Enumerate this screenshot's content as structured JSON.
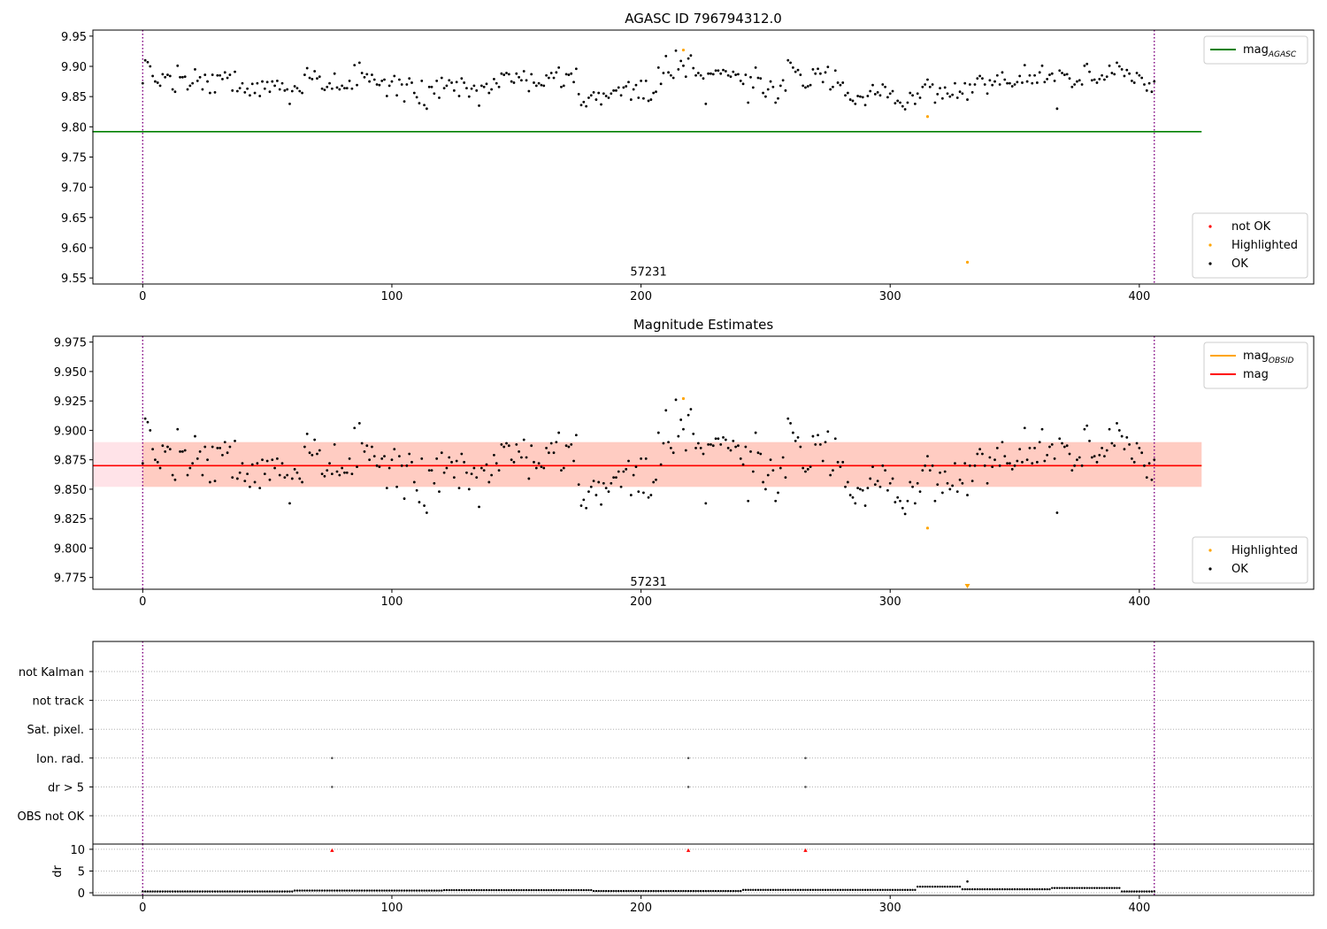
{
  "chart_data": [
    {
      "id": "top",
      "type": "scatter",
      "title": "AGASC ID 796794312.0",
      "xlim": [
        -20,
        470
      ],
      "ylim": [
        9.54,
        9.96
      ],
      "xticks": [
        0,
        100,
        200,
        300,
        400
      ],
      "yticks": [
        9.55,
        9.6,
        9.65,
        9.7,
        9.75,
        9.8,
        9.85,
        9.9,
        9.95
      ],
      "ytick_decimals": 2,
      "vlines": [
        0,
        406
      ],
      "annotation": {
        "text": "57231",
        "x": 203,
        "y": 9.56
      },
      "reference_line": {
        "name": "magAGASC",
        "label_main": "mag",
        "label_sub": "AGASC",
        "value": 9.792,
        "x_range": [
          0,
          425
        ],
        "color": "#008000"
      },
      "base_series": {
        "name": "OK",
        "color": "#000000",
        "count": 407,
        "first_x": 0,
        "values": [
          9.872,
          9.91,
          9.907,
          9.9,
          9.884,
          9.875,
          9.873,
          9.868,
          9.887,
          9.882,
          9.886,
          9.884,
          9.862,
          9.858,
          9.901,
          9.882,
          9.882,
          9.883,
          9.862,
          9.868,
          9.872,
          9.895,
          9.876,
          9.882,
          9.862,
          9.886,
          9.875,
          9.856,
          9.886,
          9.857,
          9.885,
          9.885,
          9.879,
          9.89,
          9.881,
          9.886,
          9.86,
          9.891,
          9.859,
          9.864,
          9.872,
          9.857,
          9.863,
          9.852,
          9.871,
          9.856,
          9.872,
          9.851,
          9.875,
          9.863,
          9.874,
          9.858,
          9.875,
          9.868,
          9.876,
          9.862,
          9.872,
          9.86,
          9.862,
          9.838,
          9.859,
          9.867,
          9.864,
          9.859,
          9.856,
          9.886,
          9.897,
          9.881,
          9.879,
          9.892,
          9.88,
          9.883,
          9.863,
          9.861,
          9.866,
          9.872,
          9.863,
          9.888,
          9.865,
          9.862,
          9.868,
          9.864,
          9.864,
          9.876,
          9.863,
          9.902,
          9.869,
          9.906,
          9.889,
          9.882,
          9.887,
          9.875,
          9.886,
          9.878,
          9.87,
          9.869,
          9.876,
          9.878,
          9.851,
          9.868,
          9.875,
          9.884,
          9.852,
          9.878,
          9.87,
          9.842,
          9.87,
          9.88,
          9.873,
          9.856,
          9.849,
          9.839,
          9.876,
          9.836,
          9.83,
          9.866,
          9.866,
          9.855,
          9.876,
          9.848,
          9.881,
          9.864,
          9.868,
          9.877,
          9.873,
          9.86,
          9.874,
          9.851,
          9.88,
          9.873,
          9.864,
          9.85,
          9.863,
          9.868,
          9.86,
          9.835,
          9.868,
          9.866,
          9.871,
          9.856,
          9.862,
          9.879,
          9.872,
          9.866,
          9.888,
          9.886,
          9.889,
          9.887,
          9.875,
          9.873,
          9.888,
          9.882,
          9.877,
          9.892,
          9.877,
          9.859,
          9.887,
          9.873,
          9.868,
          9.872,
          9.869,
          9.868,
          9.885,
          9.881,
          9.889,
          9.881,
          9.89,
          9.898,
          9.866,
          9.868,
          9.887,
          9.886,
          9.888,
          9.874,
          9.896,
          9.854,
          9.836,
          9.841,
          9.834,
          9.848,
          9.852,
          9.857,
          9.845,
          9.856,
          9.837,
          9.855,
          9.851,
          9.848,
          9.855,
          9.86,
          9.86,
          9.865,
          9.852,
          9.865,
          9.867,
          9.874,
          9.845,
          9.862,
          9.869,
          9.848,
          9.876,
          9.847,
          9.876,
          9.843,
          9.845,
          9.856,
          9.858,
          9.898,
          9.871,
          9.889,
          9.917,
          9.89,
          9.885,
          9.881,
          9.926,
          9.895,
          9.909,
          9.901,
          9.883,
          9.913,
          9.918,
          9.897,
          9.885,
          9.889,
          9.885,
          9.88,
          9.838,
          9.888,
          9.888,
          9.887,
          9.893,
          9.893,
          9.888,
          9.894,
          9.892,
          9.885,
          9.883,
          9.891,
          9.886,
          9.887,
          9.876,
          9.871,
          9.886,
          9.84,
          9.882,
          9.865,
          9.898,
          9.881,
          9.88,
          9.856,
          9.85,
          9.862,
          9.875,
          9.866,
          9.84,
          9.847,
          9.868,
          9.877,
          9.86,
          9.91,
          9.906,
          9.898,
          9.891,
          9.894,
          9.886,
          9.868,
          9.865,
          9.867,
          9.869,
          9.895,
          9.888,
          9.896,
          9.888,
          9.874,
          9.89,
          9.899,
          9.862,
          9.866,
          9.893,
          9.873,
          9.869,
          9.873,
          9.852,
          9.856,
          9.845,
          9.843,
          9.838,
          9.851,
          9.85,
          9.849,
          9.836,
          9.851,
          9.859,
          9.869,
          9.854,
          9.857,
          9.852,
          9.87,
          9.866,
          9.849,
          9.855,
          9.859,
          9.839,
          9.843,
          9.84,
          9.834,
          9.829,
          9.84,
          9.856,
          9.852,
          9.838,
          9.855,
          9.848,
          9.866,
          9.87,
          9.878,
          9.866,
          9.87,
          9.84,
          9.854,
          9.864,
          9.847,
          9.865,
          9.855,
          9.85,
          9.853,
          9.872,
          9.848,
          9.858,
          9.855,
          9.872,
          9.845,
          9.87,
          9.857,
          9.87,
          9.88,
          9.884,
          9.88,
          9.87,
          9.855,
          9.877,
          9.869,
          9.875,
          9.885,
          9.87,
          9.89,
          9.878,
          9.872,
          9.872,
          9.867,
          9.87,
          9.874,
          9.884,
          9.873,
          9.902,
          9.875,
          9.885,
          9.872,
          9.885,
          9.873,
          9.89,
          9.901,
          9.874,
          9.879,
          9.886,
          9.888,
          9.876,
          9.83,
          9.893,
          9.889,
          9.886,
          9.887,
          9.88,
          9.866,
          9.87,
          9.875,
          9.877,
          9.87,
          9.901,
          9.904,
          9.891,
          9.877,
          9.878,
          9.873,
          9.879,
          9.885,
          9.878,
          9.883,
          9.901,
          9.889,
          9.887,
          9.906,
          9.9,
          9.895,
          9.884,
          9.894,
          9.888,
          9.876,
          9.873,
          9.889,
          9.885,
          9.881,
          9.87,
          9.86,
          9.872,
          9.858,
          9.875
        ]
      },
      "series": [
        {
          "name": "Highlighted",
          "color": "#ffa500",
          "points": [
            [
              217,
              9.927
            ],
            [
              315,
              9.817
            ],
            [
              331,
              9.576
            ]
          ]
        },
        {
          "name": "not OK",
          "color": "#ff0000",
          "points": []
        }
      ],
      "legends": [
        {
          "position": "top-right",
          "entries": [
            {
              "kind": "line",
              "color": "#008000",
              "label": "mag",
              "sub": "AGASC"
            }
          ]
        },
        {
          "position": "bottom-right",
          "entries": [
            {
              "kind": "dot",
              "color": "#ff0000",
              "label": "not OK"
            },
            {
              "kind": "dot",
              "color": "#ffa500",
              "label": "Highlighted"
            },
            {
              "kind": "dot",
              "color": "#000000",
              "label": "OK"
            }
          ]
        }
      ]
    },
    {
      "id": "middle",
      "type": "scatter",
      "title": "Magnitude Estimates",
      "xlim": [
        -20,
        470
      ],
      "ylim": [
        9.765,
        9.98
      ],
      "xticks": [
        0,
        100,
        200,
        300,
        400
      ],
      "yticks": [
        9.775,
        9.8,
        9.825,
        9.85,
        9.875,
        9.9,
        9.925,
        9.95,
        9.975
      ],
      "ytick_decimals": 3,
      "vlines": [
        0,
        406
      ],
      "annotation": {
        "text": "57231",
        "x": 203,
        "y": 9.771
      },
      "bands": [
        {
          "x_range": [
            -20,
            425
          ],
          "y_range": [
            9.852,
            9.89
          ],
          "color": "#ffc0cb",
          "opacity": 0.45
        },
        {
          "x_range": [
            0,
            425
          ],
          "y_range": [
            9.852,
            9.89
          ],
          "color": "#ffa07a",
          "opacity": 0.35
        }
      ],
      "reference_lines": [
        {
          "name": "magOBSID",
          "value": 9.87,
          "x_range": [
            0,
            425
          ],
          "color": "#ffa500"
        },
        {
          "name": "mag",
          "value": 9.87,
          "x_range": [
            -20,
            425
          ],
          "color": "#ff0000"
        }
      ],
      "base_series_ref": "top",
      "series": [
        {
          "name": "Highlighted",
          "color": "#ffa500",
          "points": [
            [
              217,
              9.927
            ],
            [
              315,
              9.817
            ]
          ]
        }
      ],
      "off_scale_marker": {
        "name": "Highlighted",
        "color": "#ffa500",
        "x": 331,
        "shape": "triangle-down"
      },
      "legends": [
        {
          "position": "top-right",
          "entries": [
            {
              "kind": "line",
              "color": "#ffa500",
              "label": "mag",
              "sub": "OBSID"
            },
            {
              "kind": "line",
              "color": "#ff0000",
              "label": "mag",
              "sub": ""
            }
          ]
        },
        {
          "position": "bottom-right",
          "entries": [
            {
              "kind": "dot",
              "color": "#ffa500",
              "label": "Highlighted"
            },
            {
              "kind": "dot",
              "color": "#000000",
              "label": "OK"
            }
          ]
        }
      ]
    },
    {
      "id": "flags",
      "type": "scatter",
      "xlim": [
        -20,
        470
      ],
      "vlines": [
        0,
        406
      ],
      "categories": [
        "not Kalman",
        "not track",
        "Sat. pixel.",
        "Ion. rad.",
        "dr > 5",
        "OBS not OK"
      ],
      "flag_points": [
        {
          "category": "Ion. rad.",
          "x": [
            76,
            219,
            266
          ]
        },
        {
          "category": "dr > 5",
          "x": [
            76,
            219,
            266
          ]
        }
      ]
    },
    {
      "id": "dr",
      "type": "scatter",
      "ylabel": "dr",
      "xlim": [
        -20,
        470
      ],
      "ylim": [
        -0.6,
        11.2
      ],
      "xticks": [
        0,
        100,
        200,
        300,
        400
      ],
      "yticks": [
        0,
        5,
        10
      ],
      "vlines": [
        0,
        406
      ],
      "series": [
        {
          "name": "dr",
          "color": "#000000",
          "count": 407,
          "first_x": 0,
          "segments": [
            {
              "x_range": [
                0,
                60
              ],
              "value": 0.3
            },
            {
              "x_range": [
                61,
                120
              ],
              "value": 0.5
            },
            {
              "x_range": [
                121,
                180
              ],
              "value": 0.6
            },
            {
              "x_range": [
                181,
                240
              ],
              "value": 0.4
            },
            {
              "x_range": [
                241,
                310
              ],
              "value": 0.65
            },
            {
              "x_range": [
                311,
                328
              ],
              "value": 1.4
            },
            {
              "x_range": [
                329,
                364
              ],
              "value": 0.8
            },
            {
              "x_range": [
                365,
                392
              ],
              "value": 1.1
            },
            {
              "x_range": [
                393,
                406
              ],
              "value": 0.3
            }
          ],
          "outliers": [
            [
              331,
              2.6
            ]
          ]
        },
        {
          "name": "clipped",
          "color": "#ff0000",
          "shape": "triangle-up",
          "points": [
            [
              76,
              9.8
            ],
            [
              219,
              9.8
            ],
            [
              266,
              9.8
            ]
          ]
        }
      ]
    }
  ]
}
